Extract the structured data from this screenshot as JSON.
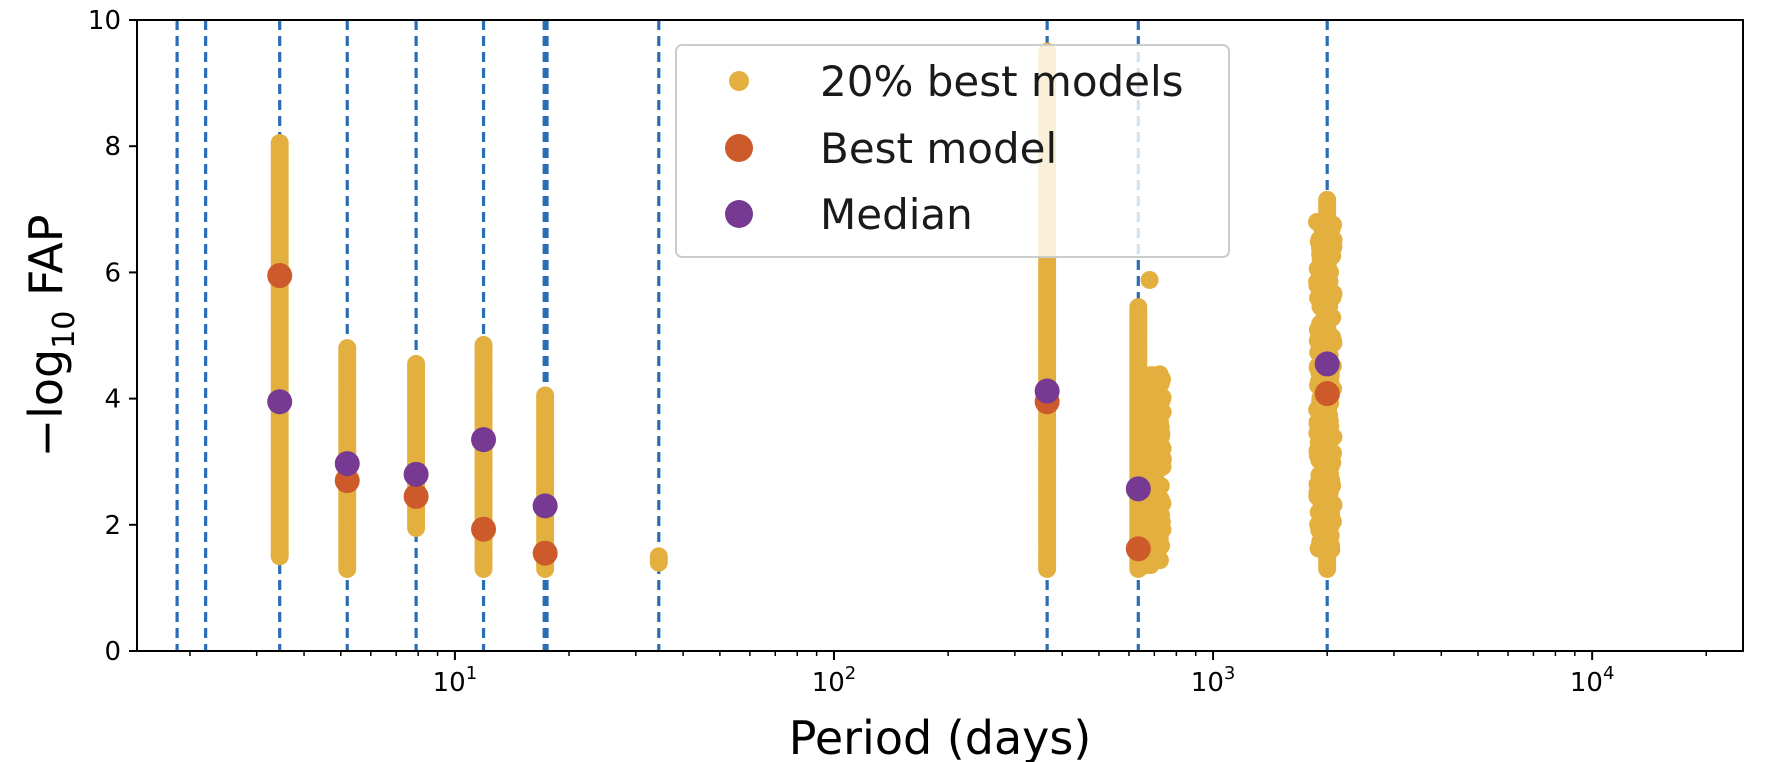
{
  "chart_data": {
    "type": "scatter",
    "title": "",
    "xlabel": "Period (days)",
    "ylabel_parts": [
      "−log",
      "10",
      " FAP"
    ],
    "xscale": "log",
    "xlim": [
      1.45,
      25000
    ],
    "ylim": [
      0,
      10
    ],
    "xticks": [
      {
        "value": 10,
        "base": "10",
        "exp": "1"
      },
      {
        "value": 100,
        "base": "10",
        "exp": "2"
      },
      {
        "value": 1000,
        "base": "10",
        "exp": "3"
      },
      {
        "value": 10000,
        "base": "10",
        "exp": "4"
      }
    ],
    "yticks": [
      {
        "value": 0,
        "label": "0"
      },
      {
        "value": 2,
        "label": "2"
      },
      {
        "value": 4,
        "label": "4"
      },
      {
        "value": 6,
        "label": "6"
      },
      {
        "value": 8,
        "label": "8"
      },
      {
        "value": 10,
        "label": "10"
      }
    ],
    "vlines": [
      1.85,
      2.2,
      3.45,
      5.2,
      7.9,
      11.9,
      17.2,
      17.5,
      34.5,
      365,
      635,
      2000
    ],
    "colors": {
      "best20": "#e3b040",
      "best": "#cc5a2a",
      "median": "#763a92",
      "vline": "#2a6db5"
    },
    "legend": {
      "placement": "top-center",
      "entries": [
        {
          "key": "best20",
          "label": "20% best models"
        },
        {
          "key": "best",
          "label": "Best model"
        },
        {
          "key": "median",
          "label": "Median"
        }
      ]
    },
    "band_series": [
      {
        "x": 3.45,
        "ymin": 1.5,
        "ymax": 8.05,
        "best": 5.95,
        "median": 3.95
      },
      {
        "x": 5.2,
        "ymin": 1.3,
        "ymax": 4.8,
        "best": 2.7,
        "median": 2.97
      },
      {
        "x": 7.9,
        "ymin": 1.95,
        "ymax": 4.55,
        "best": 2.45,
        "median": 2.8
      },
      {
        "x": 11.9,
        "ymin": 1.3,
        "ymax": 4.85,
        "best": 1.93,
        "median": 3.35
      },
      {
        "x": 17.3,
        "ymin": 1.3,
        "ymax": 4.05,
        "best": 1.55,
        "median": 2.3
      },
      {
        "x": 34.5,
        "ymin": 1.4,
        "ymax": 1.5,
        "best": null,
        "median": null
      },
      {
        "x": 365,
        "ymin": 1.3,
        "ymax": 9.5,
        "best": 3.95,
        "median": 4.12
      },
      {
        "x": 635,
        "ymin": 1.3,
        "ymax": 5.45,
        "best": 1.62,
        "median": 2.57
      },
      {
        "x": 2000,
        "ymin": 1.3,
        "ymax": 7.15,
        "best": 4.08,
        "median": 4.55
      }
    ],
    "cluster_spreads": [
      {
        "xmin": 640,
        "xmax": 740,
        "ymin": 1.35,
        "ymax": 4.4
      },
      {
        "xmin": 1880,
        "xmax": 2080,
        "ymin": 1.6,
        "ymax": 6.8
      }
    ],
    "outliers": [
      {
        "x": 680,
        "y": 5.88
      },
      {
        "x": 1880,
        "y": 6.8
      },
      {
        "x": 1900,
        "y": 2.2
      },
      {
        "x": 365,
        "y": 7.8
      },
      {
        "x": 3.45,
        "y": 1.55
      }
    ]
  }
}
